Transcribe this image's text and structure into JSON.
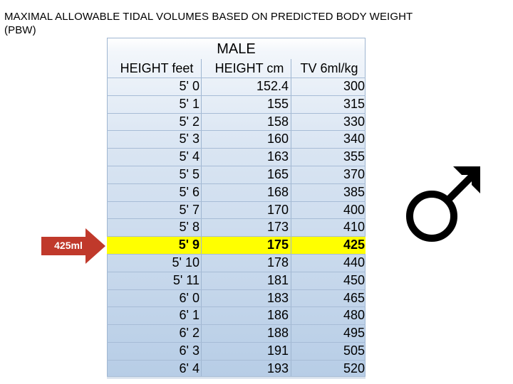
{
  "title": "MAXIMAL ALLOWABLE TIDAL VOLUMES BASED ON PREDICTED BODY WEIGHT (PBW)",
  "table": {
    "heading": "MALE",
    "columns": [
      "HEIGHT feet",
      "HEIGHT cm",
      "TV 6ml/kg"
    ],
    "rows": [
      [
        "5' 0",
        "152.4",
        "300"
      ],
      [
        "5' 1",
        "155",
        "315"
      ],
      [
        "5' 2",
        "158",
        "330"
      ],
      [
        "5' 3",
        "160",
        "340"
      ],
      [
        "5' 4",
        "163",
        "355"
      ],
      [
        "5' 5",
        "165",
        "370"
      ],
      [
        "5' 6",
        "168",
        "385"
      ],
      [
        "5' 7",
        "170",
        "400"
      ],
      [
        "5' 8",
        "173",
        "410"
      ],
      [
        "5' 9",
        "175",
        "425"
      ],
      [
        "5' 10",
        "178",
        "440"
      ],
      [
        "5' 11",
        "181",
        "450"
      ],
      [
        "6' 0",
        "183",
        "465"
      ],
      [
        "6' 1",
        "186",
        "480"
      ],
      [
        "6' 2",
        "188",
        "495"
      ],
      [
        "6' 3",
        "191",
        "505"
      ],
      [
        "6' 4",
        "193",
        "520"
      ]
    ],
    "highlighted_row": 9,
    "highlight_color": "#ffff00"
  },
  "callout": {
    "label": "425ml",
    "color": "#c0392b"
  },
  "symbol": {
    "icon": "male-symbol-icon",
    "color": "#000000"
  }
}
